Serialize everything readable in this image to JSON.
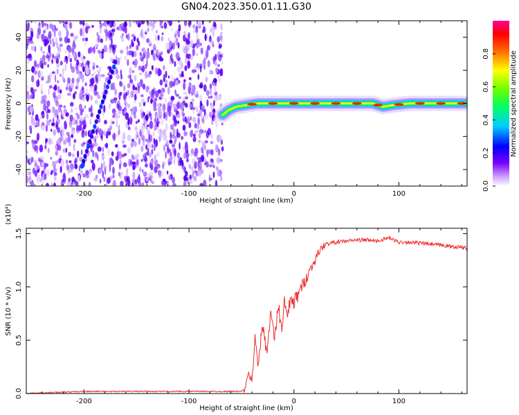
{
  "title": "GN04.2023.350.01.11.G30",
  "chart_data": [
    {
      "type": "heatmap",
      "xlabel": "Height of straight line (km)",
      "ylabel": "Frequency (Hz)",
      "xlim": [
        -255,
        165
      ],
      "ylim": [
        -50,
        50
      ],
      "x_ticks": [
        -200,
        -100,
        0,
        100
      ],
      "x_tick_labels": [
        "-200",
        "-100",
        "0",
        "100"
      ],
      "y_ticks": [
        -40,
        -20,
        0,
        20,
        40
      ],
      "y_tick_labels": [
        "-40",
        "-20",
        "0",
        "20",
        "40"
      ],
      "colorbar": {
        "label": "Normalized spectral amplitude",
        "range": [
          0,
          1
        ],
        "ticks": [
          0.0,
          0.2,
          0.4,
          0.6,
          0.8
        ],
        "tick_labels": [
          "0.0",
          "0.2",
          "0.4",
          "0.6",
          "0.8"
        ],
        "colormap": [
          "#ffffff",
          "#cc99ff",
          "#7700ff",
          "#0000ff",
          "#00ccff",
          "#00ff66",
          "#66ff00",
          "#ffff00",
          "#ff6600",
          "#ff0000",
          "#ff0099"
        ]
      },
      "noise_region": {
        "x_range": [
          -255,
          -68
        ],
        "y_range": [
          -50,
          50
        ]
      },
      "diagonal_streak": {
        "x": [
          -202,
          -170
        ],
        "y": [
          -38,
          25
        ]
      },
      "signal_trace": {
        "x": [
          -68,
          -62,
          -55,
          -45,
          -35,
          -20,
          0,
          20,
          40,
          60,
          75,
          85,
          95,
          110,
          130,
          150,
          165
        ],
        "y": [
          -7,
          -4,
          -2,
          -1,
          0,
          0,
          0,
          0,
          0,
          0,
          0,
          -2,
          -1,
          0,
          0,
          0,
          0
        ]
      },
      "grid": false
    },
    {
      "type": "line",
      "xlabel": "Height of straight line (km)",
      "ylabel": "SNR (10 * v/v)",
      "y_multiplier": "(x10⁴)",
      "xlim": [
        -255,
        165
      ],
      "ylim": [
        0,
        1.55
      ],
      "x_ticks": [
        -200,
        -100,
        0,
        100
      ],
      "x_tick_labels": [
        "-200",
        "-100",
        "0",
        "100"
      ],
      "y_ticks": [
        0.0,
        0.5,
        1.0,
        1.5
      ],
      "y_tick_labels": [
        "0.0",
        "0.5",
        "1.0",
        "1.5"
      ],
      "line_color": "#ee2a2a",
      "x": [
        -255,
        -200,
        -150,
        -100,
        -60,
        -50,
        -46,
        -43,
        -40,
        -37,
        -34,
        -30,
        -26,
        -22,
        -18,
        -15,
        -12,
        -9,
        -6,
        -3,
        0,
        5,
        10,
        15,
        20,
        25,
        30,
        40,
        50,
        60,
        70,
        80,
        90,
        100,
        110,
        120,
        130,
        140,
        150,
        160,
        165
      ],
      "y": [
        0.0,
        0.02,
        0.02,
        0.02,
        0.02,
        0.02,
        0.05,
        0.2,
        0.1,
        0.55,
        0.25,
        0.65,
        0.4,
        0.75,
        0.5,
        0.85,
        0.6,
        0.85,
        0.7,
        0.9,
        0.85,
        0.95,
        1.05,
        1.15,
        1.25,
        1.35,
        1.4,
        1.42,
        1.43,
        1.44,
        1.44,
        1.43,
        1.46,
        1.42,
        1.42,
        1.41,
        1.4,
        1.39,
        1.38,
        1.37,
        1.36
      ],
      "grid": false
    }
  ]
}
